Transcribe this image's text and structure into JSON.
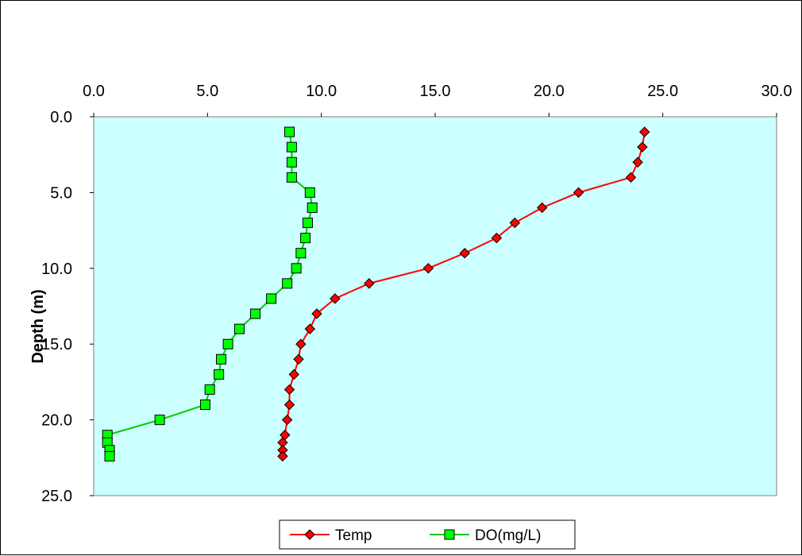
{
  "chart_data": {
    "type": "line",
    "title": "",
    "xlabel": "",
    "ylabel": "Depth (m)",
    "xlim": [
      0,
      30
    ],
    "ylim": [
      0,
      25
    ],
    "y_inverted": true,
    "x_axis_position": "top",
    "x_ticks": [
      "0.0",
      "5.0",
      "10.0",
      "15.0",
      "20.0",
      "25.0",
      "30.0"
    ],
    "y_ticks": [
      "0.0",
      "5.0",
      "10.0",
      "15.0",
      "20.0",
      "25.0"
    ],
    "grid": false,
    "plot_background": "#ccffff",
    "legend_position": "bottom",
    "series": [
      {
        "name": "Temp",
        "color": "#ff0000",
        "marker": "diamond",
        "marker_color": "#ff0000",
        "points": [
          {
            "x": 24.2,
            "y": 1
          },
          {
            "x": 24.1,
            "y": 2
          },
          {
            "x": 23.9,
            "y": 3
          },
          {
            "x": 23.6,
            "y": 4
          },
          {
            "x": 21.3,
            "y": 5
          },
          {
            "x": 19.7,
            "y": 6
          },
          {
            "x": 18.5,
            "y": 7
          },
          {
            "x": 17.7,
            "y": 8
          },
          {
            "x": 16.3,
            "y": 9
          },
          {
            "x": 14.7,
            "y": 10
          },
          {
            "x": 12.1,
            "y": 11
          },
          {
            "x": 10.6,
            "y": 12
          },
          {
            "x": 9.8,
            "y": 13
          },
          {
            "x": 9.5,
            "y": 14
          },
          {
            "x": 9.1,
            "y": 15
          },
          {
            "x": 9.0,
            "y": 16
          },
          {
            "x": 8.8,
            "y": 17
          },
          {
            "x": 8.6,
            "y": 18
          },
          {
            "x": 8.6,
            "y": 19
          },
          {
            "x": 8.5,
            "y": 20
          },
          {
            "x": 8.4,
            "y": 21
          },
          {
            "x": 8.3,
            "y": 21.5
          },
          {
            "x": 8.3,
            "y": 22
          },
          {
            "x": 8.3,
            "y": 22.4
          }
        ]
      },
      {
        "name": "DO(mg/L)",
        "color": "#00cc00",
        "marker": "square",
        "marker_color": "#00ff00",
        "points": [
          {
            "x": 8.6,
            "y": 1
          },
          {
            "x": 8.7,
            "y": 2
          },
          {
            "x": 8.7,
            "y": 3
          },
          {
            "x": 8.7,
            "y": 4
          },
          {
            "x": 9.5,
            "y": 5
          },
          {
            "x": 9.6,
            "y": 6
          },
          {
            "x": 9.4,
            "y": 7
          },
          {
            "x": 9.3,
            "y": 8
          },
          {
            "x": 9.1,
            "y": 9
          },
          {
            "x": 8.9,
            "y": 10
          },
          {
            "x": 8.5,
            "y": 11
          },
          {
            "x": 7.8,
            "y": 12
          },
          {
            "x": 7.1,
            "y": 13
          },
          {
            "x": 6.4,
            "y": 14
          },
          {
            "x": 5.9,
            "y": 15
          },
          {
            "x": 5.6,
            "y": 16
          },
          {
            "x": 5.5,
            "y": 17
          },
          {
            "x": 5.1,
            "y": 18
          },
          {
            "x": 4.9,
            "y": 19
          },
          {
            "x": 2.9,
            "y": 20
          },
          {
            "x": 0.6,
            "y": 21
          },
          {
            "x": 0.6,
            "y": 21.5
          },
          {
            "x": 0.7,
            "y": 22
          },
          {
            "x": 0.7,
            "y": 22.4
          }
        ]
      }
    ]
  }
}
